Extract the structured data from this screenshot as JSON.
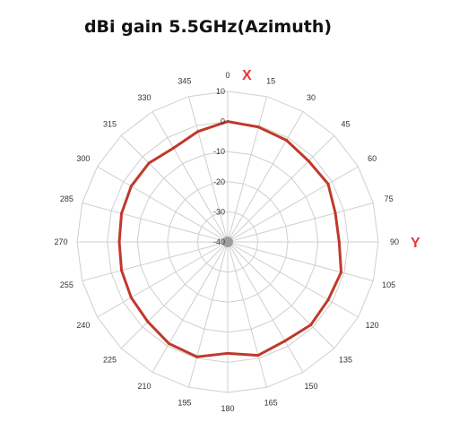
{
  "chart_data": {
    "type": "polar-line",
    "title": "dBi gain 5.5GHz(Azimuth)",
    "radial_axis": {
      "range": [
        -40,
        10
      ],
      "ticks": [
        10,
        0,
        -10,
        -20,
        -30,
        -40
      ]
    },
    "angular_axis": {
      "direction": "clockwise",
      "zero": "top",
      "ticks": [
        0,
        15,
        30,
        45,
        60,
        75,
        90,
        105,
        120,
        135,
        150,
        165,
        180,
        195,
        210,
        225,
        240,
        255,
        270,
        285,
        300,
        315,
        330,
        345
      ]
    },
    "axis_markers": [
      {
        "label": "X",
        "angle": 0
      },
      {
        "label": "Y",
        "angle": 90
      }
    ],
    "grid": true,
    "series": [
      {
        "color": "#c0392b",
        "angles": [
          0,
          15,
          30,
          45,
          60,
          75,
          90,
          105,
          120,
          135,
          150,
          165,
          180,
          195,
          210,
          225,
          240,
          255,
          270,
          285,
          300,
          315,
          330,
          345
        ],
        "values": [
          0,
          -0.5,
          -1,
          -2,
          -1.5,
          -3,
          -3,
          -1,
          -1.5,
          -1,
          -2,
          -1,
          -3,
          -0.5,
          -1,
          -2.5,
          -3,
          -3.5,
          -4,
          -3.5,
          -3,
          -3,
          -4,
          -2
        ]
      }
    ]
  }
}
